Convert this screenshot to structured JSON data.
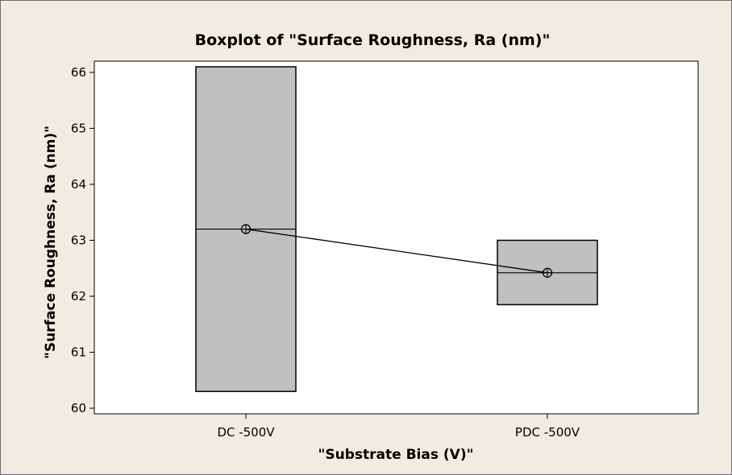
{
  "chart_data": {
    "type": "box",
    "title": "Boxplot of \"Surface Roughness, Ra (nm)\"",
    "xlabel": "\"Substrate Bias (V)\"",
    "ylabel": "\"Surface Roughness, Ra (nm)\"",
    "categories": [
      "DC -500V",
      "PDC -500V"
    ],
    "y_ticks": [
      60,
      61,
      62,
      63,
      64,
      65,
      66
    ],
    "ylim": [
      59.9,
      66.2
    ],
    "boxes": [
      {
        "category": "DC -500V",
        "q1": 60.3,
        "median": 63.2,
        "q3": 66.1,
        "mean": 63.2
      },
      {
        "category": "PDC -500V",
        "q1": 61.85,
        "median": 62.42,
        "q3": 63.0,
        "mean": 62.42
      }
    ],
    "mean_connect_line": true,
    "grid": false,
    "colors": {
      "background": "#f0ece1",
      "plot_area": "#ffffff",
      "box_fill": "#c0c0c0",
      "line": "#000000"
    }
  }
}
